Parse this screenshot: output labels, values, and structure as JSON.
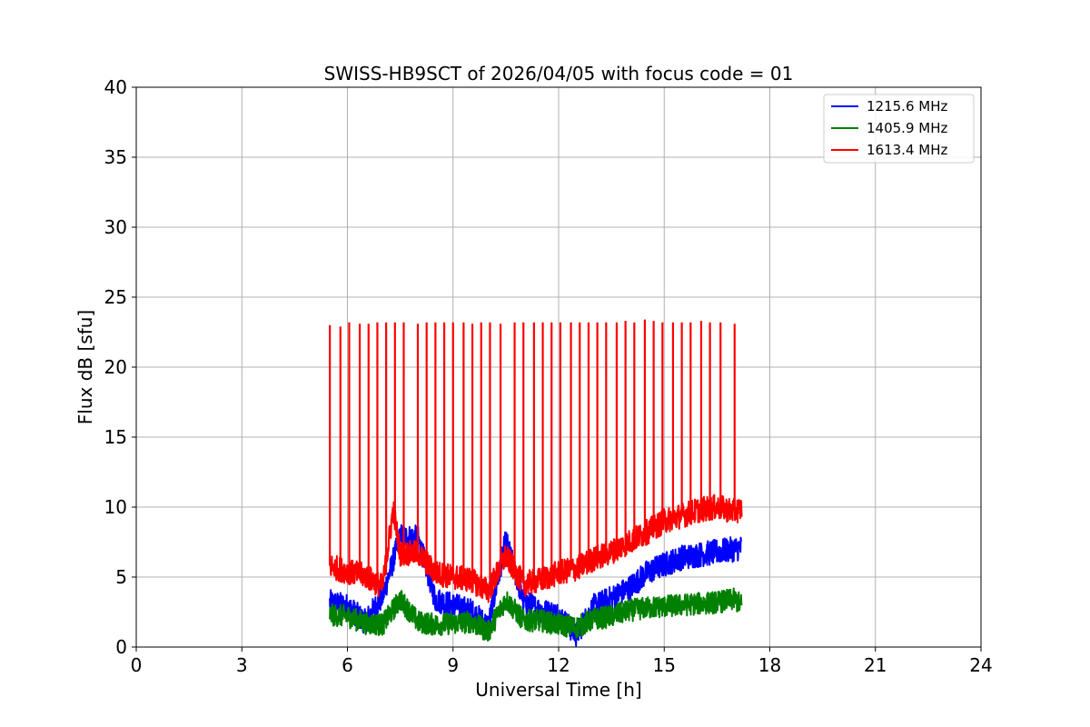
{
  "chart_data": {
    "type": "line",
    "title": "SWISS-HB9SCT of 2026/04/05 with focus code = 01",
    "xlabel": "Universal Time [h]",
    "ylabel": "Flux dB [sfu]",
    "xlim": [
      0,
      24
    ],
    "ylim": [
      0,
      40
    ],
    "xticks": [
      0,
      3,
      6,
      9,
      12,
      15,
      18,
      21,
      24
    ],
    "yticks": [
      0,
      5,
      10,
      15,
      20,
      25,
      30,
      35,
      40
    ],
    "grid": true,
    "legend_position": "top-right",
    "series": [
      {
        "name": "1215.6 MHz",
        "color": "#0000ff",
        "x": [
          5.5,
          6.0,
          6.5,
          7.0,
          7.5,
          8.0,
          8.5,
          9.0,
          9.5,
          10.0,
          10.5,
          11.0,
          11.5,
          12.0,
          12.5,
          13.0,
          13.5,
          14.0,
          14.5,
          15.0,
          15.5,
          16.0,
          16.5,
          17.0,
          17.2
        ],
        "y": [
          3.2,
          2.9,
          1.8,
          3.6,
          7.9,
          7.8,
          3.4,
          3.0,
          2.6,
          1.5,
          7.6,
          3.3,
          2.6,
          2.3,
          0.9,
          2.9,
          3.5,
          4.2,
          5.3,
          5.9,
          6.4,
          6.6,
          6.8,
          7.0,
          7.1
        ],
        "band": 0.9
      },
      {
        "name": "1405.9 MHz",
        "color": "#008000",
        "x": [
          5.5,
          6.0,
          6.5,
          7.0,
          7.5,
          8.0,
          8.5,
          9.0,
          9.5,
          10.0,
          10.5,
          11.0,
          11.5,
          12.0,
          12.5,
          13.0,
          13.5,
          14.0,
          14.5,
          15.0,
          15.5,
          16.0,
          16.5,
          17.0,
          17.2
        ],
        "y": [
          2.3,
          2.2,
          1.7,
          1.6,
          3.4,
          1.8,
          1.6,
          1.7,
          1.8,
          1.1,
          3.4,
          1.9,
          1.9,
          1.6,
          1.4,
          2.0,
          2.2,
          2.6,
          2.8,
          2.9,
          3.0,
          3.1,
          3.2,
          3.4,
          3.0
        ],
        "band": 0.8
      },
      {
        "name": "1613.4 MHz",
        "color": "#ff0000",
        "x": [
          5.5,
          6.0,
          6.5,
          7.0,
          7.3,
          7.5,
          8.0,
          8.5,
          9.0,
          9.5,
          10.0,
          10.5,
          11.0,
          11.5,
          12.0,
          12.5,
          13.0,
          13.5,
          14.0,
          14.5,
          15.0,
          15.5,
          16.0,
          16.5,
          17.0,
          17.2
        ],
        "y": [
          5.8,
          5.4,
          5.1,
          4.3,
          9.8,
          6.7,
          6.7,
          5.3,
          5.0,
          4.8,
          4.0,
          6.5,
          4.5,
          4.8,
          5.3,
          5.6,
          6.3,
          6.8,
          7.5,
          8.2,
          9.0,
          9.4,
          9.8,
          10.0,
          9.7,
          9.9
        ],
        "band": 0.9,
        "spikes": {
          "x": [
            5.5,
            5.8,
            6.05,
            6.35,
            6.6,
            6.85,
            7.1,
            7.35,
            7.6,
            8.0,
            8.25,
            8.5,
            8.75,
            9.0,
            9.3,
            9.55,
            9.8,
            10.05,
            10.35,
            10.75,
            11.0,
            11.3,
            11.55,
            11.8,
            12.05,
            12.35,
            12.6,
            12.85,
            13.1,
            13.35,
            13.65,
            13.9,
            14.15,
            14.45,
            14.7,
            14.95,
            15.25,
            15.5,
            15.75,
            16.05,
            16.3,
            16.6,
            17.0
          ],
          "y": [
            23.0,
            22.9,
            23.2,
            23.1,
            23.1,
            23.2,
            23.2,
            23.2,
            23.2,
            23.1,
            23.2,
            23.2,
            23.2,
            23.2,
            23.2,
            23.1,
            23.2,
            23.2,
            23.1,
            23.2,
            23.2,
            23.2,
            23.2,
            23.2,
            23.2,
            23.2,
            23.2,
            23.2,
            23.2,
            23.2,
            23.2,
            23.3,
            23.2,
            23.4,
            23.3,
            23.2,
            23.2,
            23.2,
            23.2,
            23.3,
            23.2,
            23.2,
            23.1
          ]
        }
      }
    ]
  }
}
